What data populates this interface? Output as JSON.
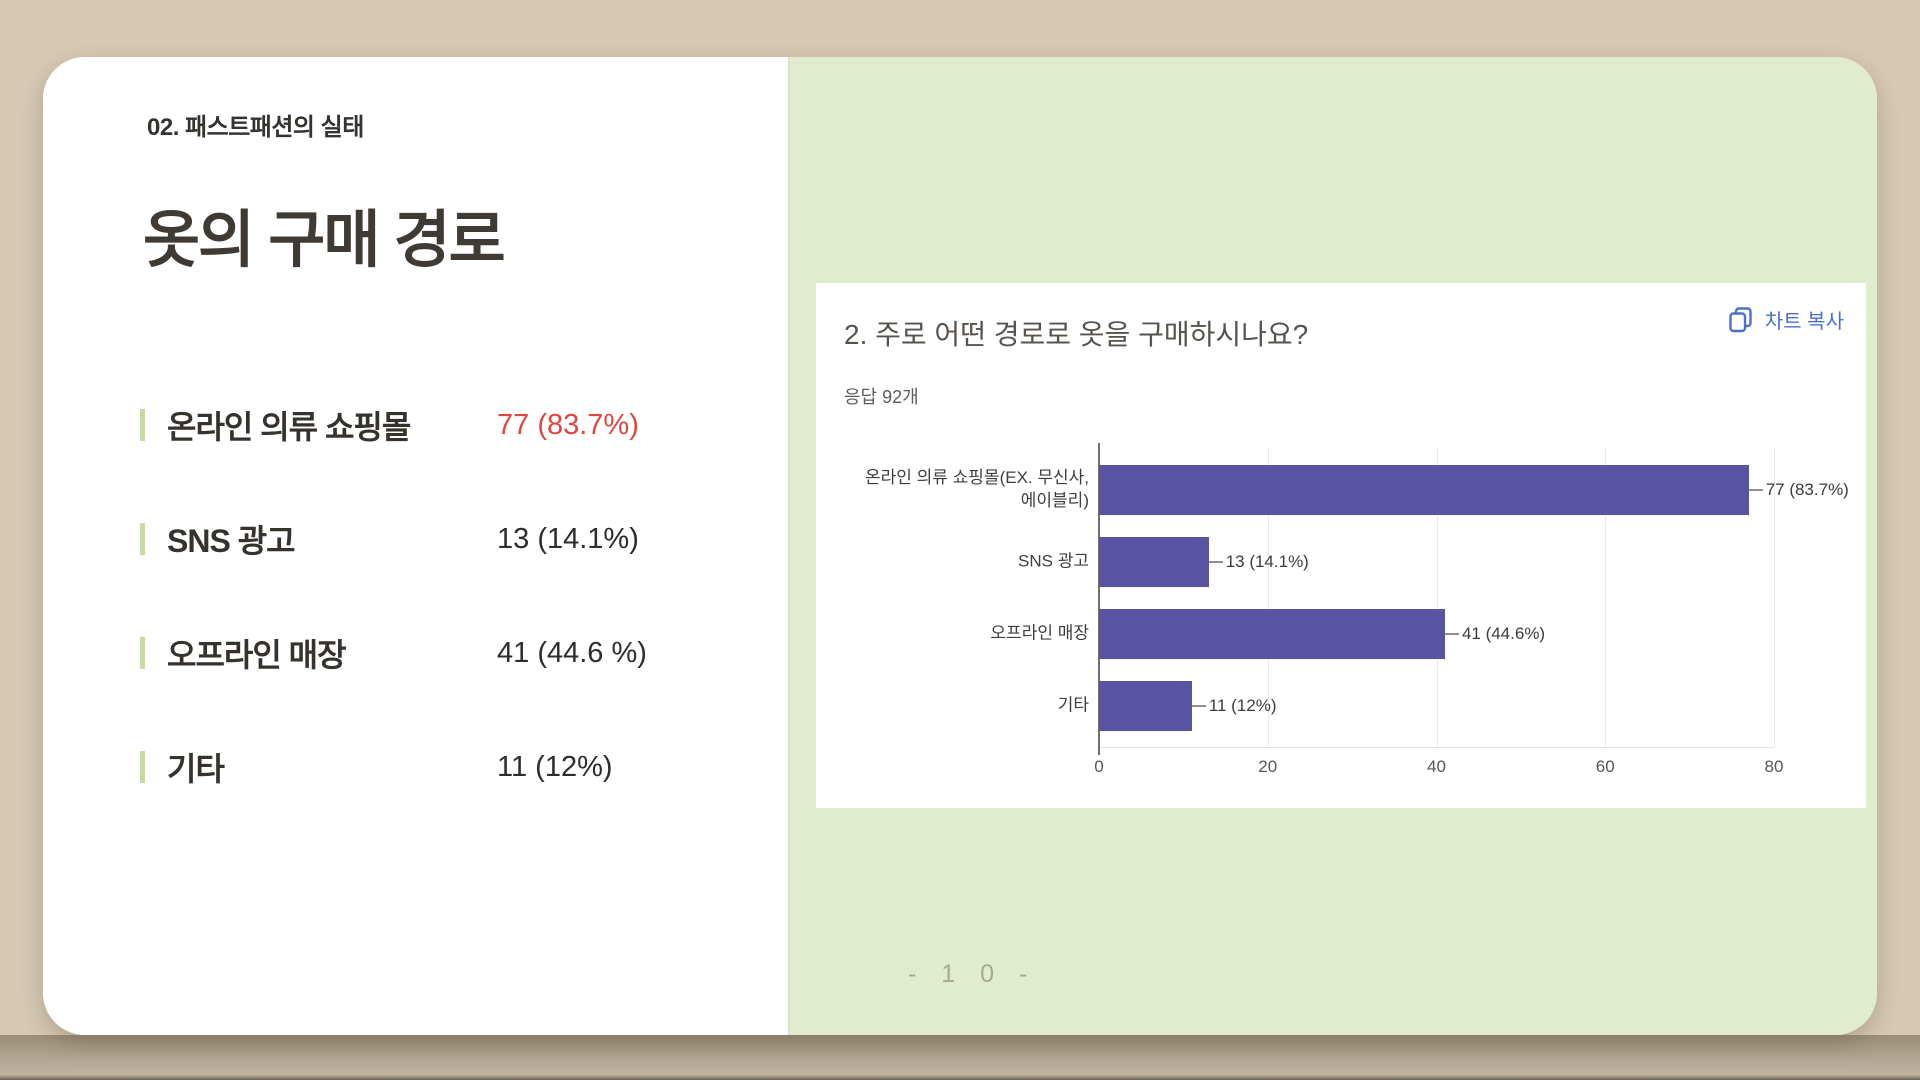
{
  "slide": {
    "eyebrow": "02. 패스트패션의 실태",
    "title": "옷의 구매 경로",
    "stats": [
      {
        "label": "온라인 의류 쇼핑몰",
        "value": "77 (83.7%)"
      },
      {
        "label": "SNS 광고",
        "value": "13 (14.1%)"
      },
      {
        "label": "오프라인 매장",
        "value": "41 (44.6 %)"
      },
      {
        "label": "기타",
        "value": "11 (12%)"
      }
    ],
    "page_number": "- 1 0 -"
  },
  "chart_card": {
    "title": "2. 주로 어떤 경로로 옷을 구매하시나요?",
    "copy_button_label": "차트 복사",
    "responses_label": "응답 92개"
  },
  "chart_data": {
    "type": "bar",
    "orientation": "horizontal",
    "title": "2. 주로 어떤 경로로 옷을 구매하시나요?",
    "subtitle": "응답 92개",
    "categories": [
      "온라인 의류 쇼핑몰(EX. 무신사,\n에이블리)",
      "SNS 광고",
      "오프라인 매장",
      "기타"
    ],
    "values": [
      77,
      13,
      41,
      11
    ],
    "value_labels": [
      "77 (83.7%)",
      "13 (14.1%)",
      "41 (44.6%)",
      "11 (12%)"
    ],
    "xlim": [
      0,
      80
    ],
    "xticks": [
      "0",
      "20",
      "40",
      "60",
      "80"
    ],
    "grid": true,
    "legend": false,
    "bar_color": "#5a52a2"
  },
  "colors": {
    "desk_background": "#d6c8b2",
    "panel_green": "#e1ecce",
    "accent_red": "#e0463e",
    "accent_blue": "#4a70c8",
    "bar_purple": "#5a52a2",
    "list_tick_green": "#c9d9a4"
  }
}
